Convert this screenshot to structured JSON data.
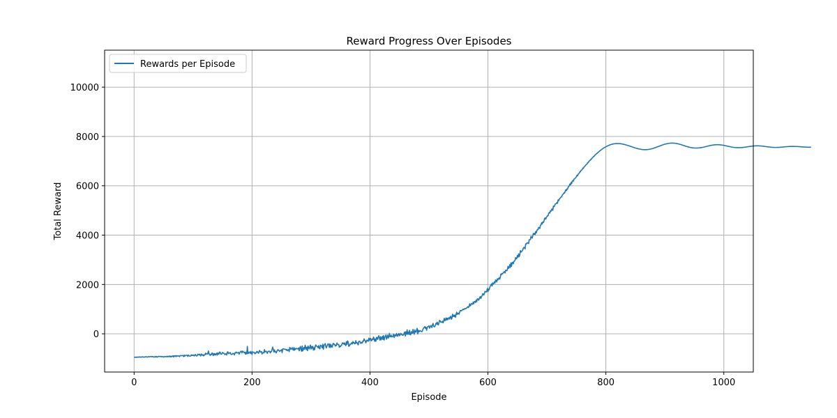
{
  "chart_data": {
    "type": "line",
    "title": "Reward Progress Over Episodes",
    "xlabel": "Episode",
    "ylabel": "Total Reward",
    "xlim": [
      -50,
      1050
    ],
    "ylim": [
      -1550,
      11500
    ],
    "xticks": [
      0,
      200,
      400,
      600,
      800,
      1000
    ],
    "yticks": [
      0,
      2000,
      4000,
      6000,
      8000,
      10000
    ],
    "grid": true,
    "legend_position": "upper-left",
    "colors": {
      "line": "#1f77b4",
      "grid": "#b0b0b0"
    },
    "series": [
      {
        "name": "Rewards per Episode",
        "x_start": 0,
        "x_step": 1,
        "values": [
          -950,
          -955,
          -949,
          -944,
          -960,
          -948,
          -941,
          -952,
          -938,
          -947,
          -935,
          -950,
          -943,
          -945,
          -930,
          -941,
          -939,
          -951,
          -936,
          -940,
          -928,
          -932,
          -944,
          -945,
          -930,
          -928,
          -936,
          -925,
          -924,
          -920,
          -936,
          -920,
          -923,
          -941,
          -948,
          -934,
          -917,
          -947,
          -921,
          -947,
          -936,
          -924,
          -914,
          -913,
          -926,
          -925,
          -915,
          -936,
          -926,
          -922,
          -944,
          -940,
          -917,
          -921,
          -935,
          -929,
          -906,
          -935,
          -917,
          -925,
          -900,
          -935,
          -908,
          -935,
          -905,
          -917,
          -893,
          -940,
          -892,
          -905,
          -889,
          -926,
          -885,
          -902,
          -899,
          -903,
          -895,
          -927,
          -891,
          -880,
          -892,
          -881,
          -879,
          -890,
          -922,
          -861,
          -906,
          -883,
          -872,
          -870,
          -873,
          -920,
          -859,
          -884,
          -906,
          -907,
          -901,
          -854,
          -884,
          -858,
          -877,
          -858,
          -900,
          -875,
          -838,
          -882,
          -902,
          -891,
          -824,
          -839,
          -856,
          -823,
          -859,
          -899,
          -817,
          -851,
          -874,
          -848,
          -896,
          -861,
          -859,
          -785,
          -830,
          -811,
          -798,
          -823,
          -696,
          -809,
          -830,
          -881,
          -833,
          -846,
          -780,
          -792,
          -886,
          -810,
          -860,
          -800,
          -863,
          -831,
          -787,
          -864,
          -771,
          -832,
          -811,
          -738,
          -756,
          -822,
          -831,
          -800,
          -756,
          -782,
          -791,
          -805,
          -847,
          -818,
          -813,
          -861,
          -746,
          -730,
          -802,
          -801,
          -775,
          -762,
          -824,
          -837,
          -840,
          -799,
          -794,
          -818,
          -856,
          -773,
          -782,
          -739,
          -773,
          -775,
          -766,
          -754,
          -830,
          -778,
          -738,
          -708,
          -706,
          -775,
          -704,
          -727,
          -742,
          -777,
          -741,
          -830,
          -757,
          -813,
          -509,
          -802,
          -788,
          -738,
          -743,
          -801,
          -715,
          -786,
          -836,
          -730,
          -748,
          -756,
          -760,
          -814,
          -771,
          -774,
          -713,
          -720,
          -774,
          -787,
          -708,
          -674,
          -736,
          -742,
          -718,
          -821,
          -771,
          -763,
          -779,
          -640,
          -737,
          -715,
          -705,
          -749,
          -794,
          -717,
          -707,
          -714,
          -708,
          -777,
          -726,
          -714,
          -630,
          -538,
          -629,
          -738,
          -652,
          -732,
          -728,
          -776,
          -712,
          -670,
          -640,
          -677,
          -685,
          -716,
          -675,
          -677,
          -646,
          -763,
          -613,
          -609,
          -613,
          -623,
          -634,
          -624,
          -665,
          -635,
          -688,
          -658,
          -639,
          -725,
          -549,
          -584,
          -631,
          -600,
          -563,
          -630,
          -663,
          -557,
          -668,
          -598,
          -628,
          -593,
          -598,
          -608,
          -618,
          -574,
          -692,
          -568,
          -513,
          -631,
          -709,
          -497,
          -695,
          -625,
          -554,
          -631,
          -464,
          -545,
          -640,
          -544,
          -685,
          -496,
          -564,
          -617,
          -524,
          -457,
          -618,
          -515,
          -579,
          -508,
          -659,
          -565,
          -647,
          -523,
          -450,
          -490,
          -508,
          -524,
          -569,
          -480,
          -581,
          -613,
          -456,
          -476,
          -507,
          -571,
          -420,
          -629,
          -466,
          -440,
          -396,
          -516,
          -573,
          -508,
          -442,
          -403,
          -442,
          -549,
          -407,
          -556,
          -445,
          -524,
          -545,
          -418,
          -389,
          -435,
          -425,
          -501,
          -460,
          -482,
          -372,
          -428,
          -437,
          -432,
          -548,
          -497,
          -517,
          -472,
          -465,
          -370,
          -394,
          -373,
          -429,
          -370,
          -443,
          -481,
          -322,
          -427,
          -287,
          -334,
          -509,
          -493,
          -423,
          -433,
          -398,
          -362,
          -413,
          -315,
          -374,
          -358,
          -405,
          -398,
          -278,
          -379,
          -356,
          -408,
          -450,
          -307,
          -306,
          -308,
          -381,
          -387,
          -344,
          -373,
          -287,
          -303,
          -205,
          -260,
          -286,
          -371,
          -291,
          -254,
          -281,
          -307,
          -179,
          -266,
          -195,
          -182,
          -285,
          -274,
          -208,
          -233,
          -133,
          -212,
          -307,
          -206,
          -303,
          -147,
          -156,
          -233,
          -122,
          -77,
          -177,
          -257,
          -116,
          -244,
          -176,
          -107,
          -230,
          -75,
          -253,
          -148,
          -102,
          -49,
          -221,
          -136,
          -51,
          -176,
          -107,
          18,
          -124,
          -114,
          -54,
          -128,
          -121,
          -98,
          -15,
          -155,
          -52,
          -47,
          -93,
          14,
          -61,
          -102,
          -25,
          11,
          -81,
          -47,
          17,
          -24,
          -5,
          -59,
          -52,
          -52,
          40,
          74,
          -88,
          80,
          -19,
          162,
          -22,
          70,
          -18,
          141,
          -36,
          -42,
          92,
          20,
          25,
          181,
          57,
          -19,
          156,
          79,
          62,
          144,
          222,
          -9,
          148,
          75,
          112,
          133,
          104,
          102,
          84,
          132,
          194,
          240,
          250,
          291,
          223,
          265,
          142,
          253,
          286,
          300,
          320,
          229,
          267,
          337,
          308,
          252,
          369,
          420,
          303,
          284,
          296,
          356,
          430,
          392,
          476,
          378,
          359,
          452,
          547,
          521,
          472,
          474,
          465,
          511,
          443,
          522,
          628,
          532,
          568,
          643,
          556,
          638,
          573,
          613,
          656,
          598,
          686,
          709,
          589,
          637,
          792,
          702,
          754,
          694,
          761,
          668,
          783,
          876,
          784,
          826,
          839,
          792,
          869,
          944,
          940,
          926,
          954,
          975,
          1000,
          975,
          1009,
          1024,
          1008,
          1038,
          1043,
          1068,
          1103,
          1065,
          1108,
          1216,
          1130,
          1169,
          1229,
          1214,
          1195,
          1283,
          1218,
          1306,
          1316,
          1270,
          1365,
          1301,
          1416,
          1420,
          1360,
          1395,
          1465,
          1506,
          1431,
          1515,
          1532,
          1623,
          1617,
          1569,
          1643,
          1718,
          1711,
          1690,
          1727,
          1834,
          1705,
          1810,
          1781,
          1871,
          1940,
          1970,
          2020,
          1937,
          2068,
          2013,
          2040,
          2105,
          2060,
          2186,
          2155,
          2100,
          2232,
          2186,
          2240,
          2270,
          2217,
          2301,
          2426,
          2397,
          2449,
          2435,
          2474,
          2502,
          2521,
          2463,
          2576,
          2577,
          2554,
          2606,
          2731,
          2651,
          2690,
          2802,
          2688,
          2876,
          2736,
          2879,
          2902,
          2837,
          2935,
          2945,
          2986,
          3090,
          3035,
          3062,
          3177,
          3107,
          3242,
          3126,
          3198,
          3374,
          3309,
          3335,
          3358,
          3398,
          3473,
          3506,
          3484,
          3443,
          3639,
          3635,
          3685,
          3674,
          3692,
          3657,
          3814,
          3817,
          3820,
          3949,
          3922,
          3876,
          3970,
          4066,
          4034,
          4074,
          4017,
          4148,
          4091,
          4184,
          4230,
          4222,
          4314,
          4305,
          4271,
          4399,
          4408,
          4505,
          4456,
          4536,
          4511,
          4564,
          4671,
          4699,
          4647,
          4713,
          4745,
          4791,
          4785,
          4883,
          4918,
          4894,
          4986,
          4971,
          5043,
          5064,
          5002,
          5179,
          5154,
          5179,
          5262,
          5267,
          5277,
          5324,
          5293,
          5429,
          5397,
          5459,
          5480,
          5522,
          5542,
          5550,
          5620,
          5650,
          5670,
          5717,
          5705,
          5772,
          5838,
          5802,
          5873,
          5862,
          5954,
          5959,
          6011,
          6075,
          6036,
          6133,
          6089,
          6189,
          6216,
          6187,
          6277,
          6283,
          6314,
          6332,
          6366,
          6430,
          6404,
          6472,
          6485,
          6522,
          6572,
          6567,
          6630,
          6634,
          6667,
          6720,
          6709,
          6764,
          6784,
          6812,
          6847,
          6864,
          6883,
          6941,
          6934,
          6984,
          7010,
          7023,
          7066,
          7067,
          7110,
          7133,
          7156,
          7188,
          7190,
          7238,
          7249,
          7275,
          7300,
          7312,
          7345,
          7355,
          7384,
          7400,
          7417,
          7441,
          7455,
          7475,
          7492,
          7510,
          7525,
          7539,
          7557,
          7568,
          7583,
          7596,
          7608,
          7621,
          7631,
          7641,
          7652,
          7660,
          7668,
          7677,
          7683,
          7689,
          7695,
          7700,
          7704,
          7707,
          7710,
          7712,
          7713,
          7714,
          7714,
          7714,
          7713,
          7711,
          7709,
          7706,
          7703,
          7699,
          7694,
          7689,
          7684,
          7678,
          7672,
          7666,
          7659,
          7652,
          7645,
          7637,
          7630,
          7622,
          7614,
          7606,
          7598,
          7590,
          7582,
          7574,
          7566,
          7558,
          7550,
          7542,
          7535,
          7528,
          7521,
          7514,
          7508,
          7502,
          7496,
          7491,
          7486,
          7482,
          7478,
          7474,
          7471,
          7469,
          7467,
          7466,
          7465,
          7465,
          7466,
          7467,
          7469,
          7471,
          7474,
          7478,
          7482,
          7487,
          7492,
          7498,
          7504,
          7511,
          7518,
          7526,
          7533,
          7541,
          7550,
          7558,
          7567,
          7576,
          7585,
          7594,
          7603,
          7612,
          7621,
          7630,
          7639,
          7647,
          7656,
          7664,
          7672,
          7679,
          7686,
          7693,
          7699,
          7705,
          7710,
          7715,
          7719,
          7723,
          7726,
          7728,
          7730,
          7731,
          7732,
          7732,
          7731,
          7730,
          7728,
          7725,
          7722,
          7718,
          7714,
          7709,
          7704,
          7698,
          7692,
          7686,
          7679,
          7672,
          7665,
          7657,
          7650,
          7642,
          7634,
          7626,
          7618,
          7611,
          7603,
          7596,
          7589,
          7582,
          7575,
          7569,
          7563,
          7558,
          7553,
          7548,
          7544,
          7541,
          7538,
          7535,
          7533,
          7532,
          7531,
          7531,
          7531,
          7532,
          7533,
          7535,
          7537,
          7540,
          7543,
          7547,
          7551,
          7555,
          7560,
          7565,
          7570,
          7576,
          7581,
          7587,
          7593,
          7599,
          7605,
          7611,
          7617,
          7622,
          7628,
          7633,
          7638,
          7643,
          7647,
          7651,
          7655,
          7658,
          7661,
          7663,
          7665,
          7666,
          7667,
          7667,
          7667,
          7666,
          7665,
          7663,
          7661,
          7658,
          7655,
          7652,
          7648,
          7644,
          7640,
          7635,
          7630,
          7625,
          7620,
          7615,
          7610,
          7604,
          7599,
          7594,
          7589,
          7584,
          7579,
          7574,
          7570,
          7566,
          7562,
          7559,
          7556,
          7553,
          7551,
          7549,
          7548,
          7547,
          7546,
          7546,
          7546,
          7547,
          7548,
          7549,
          7551,
          7553,
          7555,
          7558,
          7561,
          7564,
          7567,
          7571,
          7574,
          7578,
          7582,
          7585,
          7589,
          7593,
          7596,
          7600,
          7603,
          7606,
          7609,
          7612,
          7614,
          7616,
          7618,
          7619,
          7620,
          7621,
          7621,
          7621,
          7621,
          7620,
          7619,
          7618,
          7616,
          7614,
          7612,
          7609,
          7607,
          7604,
          7601,
          7598,
          7595,
          7591,
          7588,
          7585,
          7582,
          7579,
          7576,
          7573,
          7570,
          7568,
          7565,
          7563,
          7561,
          7560,
          7558,
          7557,
          7556,
          7556,
          7556,
          7556,
          7556,
          7557,
          7558,
          7559,
          7560,
          7562,
          7564,
          7566,
          7568,
          7570,
          7572,
          7574,
          7577,
          7579,
          7581,
          7583,
          7586,
          7588,
          7590,
          7591,
          7593,
          7594,
          7596,
          7597,
          7597,
          7598,
          7598,
          7598,
          7598,
          7598,
          7597,
          7596,
          7595,
          7594,
          7593,
          7592,
          7590,
          7589,
          7587,
          7585,
          7583,
          7582,
          7580,
          7578,
          7576,
          7575,
          7573,
          7572,
          7570,
          7569,
          7568,
          7567,
          7566,
          7566,
          7565,
          7565,
          7565,
          7565,
          7565
        ]
      }
    ]
  }
}
